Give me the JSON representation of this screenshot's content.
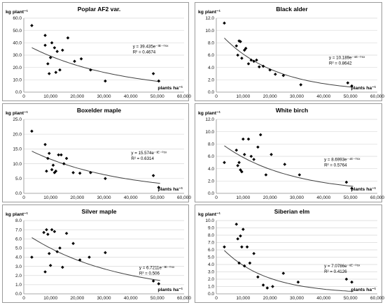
{
  "chart_data": [
    {
      "type": "scatter",
      "title": "Poplar AF2 var.",
      "ylabel": "kg plant⁻¹",
      "xlabel": "plants ha⁻¹",
      "ylim": [
        0,
        60
      ],
      "yticks": [
        "0.0",
        "10.0",
        "20.0",
        "30.0",
        "40.0",
        "50.0",
        "60.0"
      ],
      "xlim": [
        0,
        60000
      ],
      "xticks": [
        "0",
        "10,000",
        "20,000",
        "30,000",
        "40,000",
        "50,000",
        "60,000"
      ],
      "equation": "y = 39.435e⁻³ᴱ⁻⁰⁵ˣ",
      "r2": "R² = 0.4674",
      "trend": {
        "a": 39.435,
        "b": 3e-05
      },
      "points": [
        [
          3000,
          54
        ],
        [
          8000,
          46
        ],
        [
          8000,
          38
        ],
        [
          9000,
          23
        ],
        [
          9500,
          15
        ],
        [
          10000,
          28
        ],
        [
          10500,
          40
        ],
        [
          11500,
          36
        ],
        [
          12000,
          16
        ],
        [
          12500,
          33
        ],
        [
          13500,
          18
        ],
        [
          14500,
          34
        ],
        [
          16500,
          44
        ],
        [
          19000,
          25
        ],
        [
          21500,
          27
        ],
        [
          25000,
          18
        ],
        [
          30500,
          9
        ],
        [
          48500,
          15
        ],
        [
          50500,
          9
        ]
      ]
    },
    {
      "type": "scatter",
      "title": "Black alder",
      "ylabel": "kg plant⁻¹",
      "xlabel": "plants ha⁻¹",
      "ylim": [
        0,
        12
      ],
      "yticks": [
        "0.0",
        "2.0",
        "4.0",
        "6.0",
        "8.0",
        "10.0",
        "12.0"
      ],
      "xlim": [
        0,
        60000
      ],
      "xticks": [
        "0",
        "10,000",
        "20,000",
        "30,000",
        "40,000",
        "50,000",
        "60,000"
      ],
      "equation": "y = 10.189e⁻⁵ᴱ⁻⁰⁵ˣ",
      "r2": "R² = 0.8642",
      "trend": {
        "a": 10.189,
        "b": 5e-05
      },
      "points": [
        [
          3000,
          11.2
        ],
        [
          7500,
          7.5
        ],
        [
          8000,
          6
        ],
        [
          8500,
          8.3
        ],
        [
          9000,
          8.2
        ],
        [
          9500,
          5.5
        ],
        [
          10500,
          6.8
        ],
        [
          11000,
          7.1
        ],
        [
          12000,
          4.6
        ],
        [
          13000,
          5.2
        ],
        [
          14000,
          5
        ],
        [
          15000,
          5.2
        ],
        [
          16000,
          4.1
        ],
        [
          17500,
          4.2
        ],
        [
          20000,
          3.6
        ],
        [
          22000,
          2.9
        ],
        [
          25000,
          2.7
        ],
        [
          31500,
          1.2
        ],
        [
          49000,
          1.5
        ],
        [
          50500,
          1
        ]
      ]
    },
    {
      "type": "scatter",
      "title": "Boxelder maple",
      "ylabel": "kg plant⁻¹",
      "xlabel": "plants ha⁻¹",
      "ylim": [
        0,
        25
      ],
      "yticks": [
        "0.0",
        "5.0",
        "10.0",
        "15.0",
        "20.0",
        "25.0"
      ],
      "xlim": [
        0,
        60000
      ],
      "xticks": [
        "0",
        "10,000",
        "20,000",
        "30,000",
        "40,000",
        "50,000",
        "60,000"
      ],
      "equation": "y = 15.574e⁻³ᴱ⁻⁰⁵ˣ",
      "r2": "R² = 0.6314",
      "trend": {
        "a": 15.574,
        "b": 3e-05
      },
      "points": [
        [
          3000,
          21
        ],
        [
          8000,
          16.5
        ],
        [
          8500,
          7.5
        ],
        [
          9000,
          11.8
        ],
        [
          9500,
          13.5
        ],
        [
          10500,
          8
        ],
        [
          11000,
          9.5
        ],
        [
          11500,
          7
        ],
        [
          12000,
          7.5
        ],
        [
          13000,
          13
        ],
        [
          14000,
          13
        ],
        [
          15000,
          10
        ],
        [
          16000,
          11.8
        ],
        [
          18500,
          7
        ],
        [
          21000,
          6.8
        ],
        [
          25000,
          7
        ],
        [
          30500,
          5
        ],
        [
          48500,
          6
        ],
        [
          50500,
          2
        ]
      ]
    },
    {
      "type": "scatter",
      "title": "White birch",
      "ylabel": "kg plant⁻¹",
      "xlabel": "plants ha⁻¹",
      "ylim": [
        0,
        12
      ],
      "yticks": [
        "0.0",
        "2.0",
        "4.0",
        "6.0",
        "8.0",
        "10.0",
        "12.0"
      ],
      "xlim": [
        0,
        60000
      ],
      "xticks": [
        "0",
        "10,000",
        "20,000",
        "30,000",
        "40,000",
        "50,000",
        "60,000"
      ],
      "equation": "y = 8.6993e⁻⁴ᴱ⁻⁰⁵ˣ",
      "r2": "R² = 0.5764",
      "trend": {
        "a": 8.6993,
        "b": 4e-05
      },
      "points": [
        [
          3000,
          5
        ],
        [
          7500,
          7
        ],
        [
          8000,
          4.5
        ],
        [
          8500,
          5
        ],
        [
          9000,
          3.8
        ],
        [
          9500,
          3.5
        ],
        [
          10000,
          8.8
        ],
        [
          10500,
          6.3
        ],
        [
          12000,
          8.8
        ],
        [
          13000,
          6
        ],
        [
          14000,
          5.5
        ],
        [
          15500,
          7.5
        ],
        [
          16500,
          9.5
        ],
        [
          18500,
          3
        ],
        [
          20500,
          6.3
        ],
        [
          25500,
          4.7
        ],
        [
          31000,
          3
        ],
        [
          48500,
          1.8
        ],
        [
          50500,
          0.8
        ]
      ]
    },
    {
      "type": "scatter",
      "title": "Silver maple",
      "ylabel": "kg plant⁻¹",
      "xlabel": "plants ha⁻¹",
      "ylim": [
        0,
        8
      ],
      "yticks": [
        "0.0",
        "1.0",
        "2.0",
        "3.0",
        "4.0",
        "5.0",
        "6.0",
        "7.0",
        "8.0"
      ],
      "xlim": [
        0,
        60000
      ],
      "xticks": [
        "0",
        "10,000",
        "20,000",
        "30,000",
        "40,000",
        "50,000",
        "60,000"
      ],
      "equation": "y = 6.7211e⁻³ᴱ⁻⁰⁵ˣ",
      "r2": "R² = 0.506",
      "trend": {
        "a": 6.7211,
        "b": 3e-05
      },
      "points": [
        [
          3000,
          4
        ],
        [
          7500,
          6.7
        ],
        [
          8000,
          2.4
        ],
        [
          8500,
          7
        ],
        [
          9000,
          6.5
        ],
        [
          9500,
          4.4
        ],
        [
          10000,
          3.1
        ],
        [
          10500,
          7
        ],
        [
          11500,
          6.8
        ],
        [
          12500,
          4.6
        ],
        [
          13500,
          5
        ],
        [
          14500,
          2.9
        ],
        [
          16000,
          6.6
        ],
        [
          18500,
          5.5
        ],
        [
          21000,
          3.7
        ],
        [
          24500,
          4
        ],
        [
          30500,
          4.5
        ],
        [
          48500,
          1.4
        ],
        [
          50500,
          1.1
        ]
      ]
    },
    {
      "type": "scatter",
      "title": "Siberian elm",
      "ylabel": "kg plant⁻¹",
      "xlabel": "plants ha⁻¹",
      "ylim": [
        0,
        10
      ],
      "yticks": [
        "0.0",
        "1.0",
        "2.0",
        "3.0",
        "4.0",
        "5.0",
        "6.0",
        "7.0",
        "8.0",
        "9.0",
        "10.0"
      ],
      "xlim": [
        0,
        60000
      ],
      "xticks": [
        "0",
        "10,000",
        "20,000",
        "30,000",
        "40,000",
        "50,000",
        "60,000"
      ],
      "equation": "y = 7.0786e⁻⁶ᴱ⁻⁰⁵ˣ",
      "r2": "R² = 0.4126",
      "trend": {
        "a": 7.0786,
        "b": 6e-05
      },
      "points": [
        [
          3000,
          6.4
        ],
        [
          7500,
          9.5
        ],
        [
          8000,
          7.5
        ],
        [
          8500,
          4.2
        ],
        [
          9000,
          7.9
        ],
        [
          9500,
          6.4
        ],
        [
          10000,
          8.8
        ],
        [
          10500,
          3.8
        ],
        [
          11500,
          6.4
        ],
        [
          12500,
          4.2
        ],
        [
          14000,
          5.5
        ],
        [
          15500,
          2.3
        ],
        [
          17500,
          1.2
        ],
        [
          19000,
          0.8
        ],
        [
          21000,
          1
        ],
        [
          25000,
          2.8
        ],
        [
          30500,
          1.6
        ],
        [
          48500,
          2
        ],
        [
          50500,
          1.6
        ]
      ]
    }
  ]
}
